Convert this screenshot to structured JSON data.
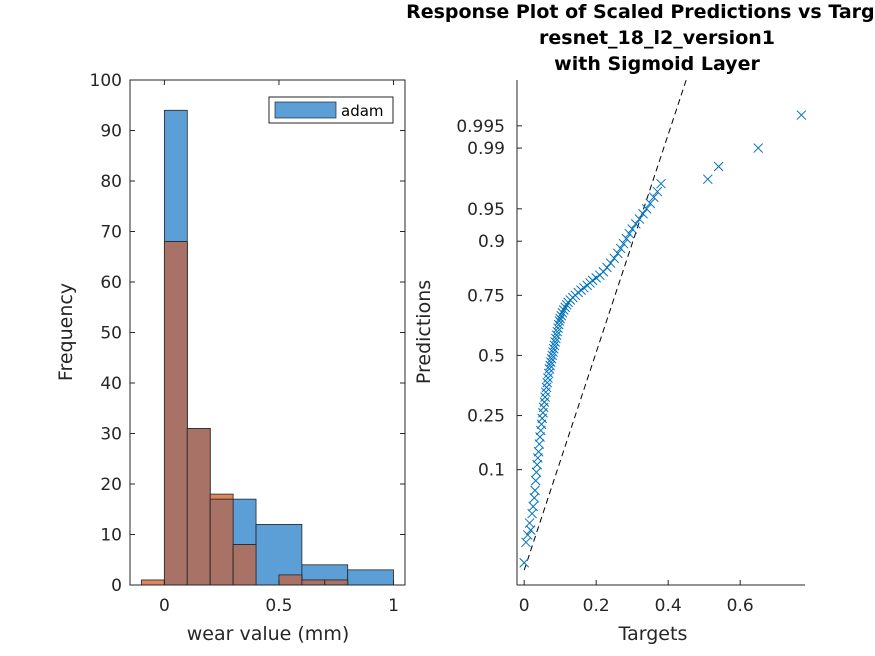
{
  "chart_data": [
    {
      "type": "bar",
      "subtype": "histogram-overlay",
      "xlabel": "wear value (mm)",
      "ylabel": "Frequency",
      "xlim": [
        -0.15,
        1.05
      ],
      "ylim": [
        0,
        100
      ],
      "xticks": [
        0,
        0.5,
        1
      ],
      "xtick_labels": [
        "0",
        "0.5",
        "1"
      ],
      "yticks": [
        0,
        10,
        20,
        30,
        40,
        50,
        60,
        70,
        80,
        90,
        100
      ],
      "ytick_labels": [
        "0",
        "10",
        "20",
        "30",
        "40",
        "50",
        "60",
        "70",
        "80",
        "90",
        "100"
      ],
      "legend": {
        "entries": [
          "adam"
        ],
        "placement": "top-right"
      },
      "grid": false,
      "series": [
        {
          "name": "adam",
          "color": "#5B9FD6",
          "bins": [
            {
              "x0": 0.0,
              "x1": 0.1,
              "value": 94
            },
            {
              "x0": 0.1,
              "x1": 0.2,
              "value": 31
            },
            {
              "x0": 0.2,
              "x1": 0.3,
              "value": 17
            },
            {
              "x0": 0.3,
              "x1": 0.4,
              "value": 17
            },
            {
              "x0": 0.4,
              "x1": 0.6,
              "value": 12
            },
            {
              "x0": 0.6,
              "x1": 0.8,
              "value": 4
            },
            {
              "x0": 0.8,
              "x1": 1.0,
              "value": 3
            }
          ]
        },
        {
          "color": "#D9784A",
          "bins": [
            {
              "x0": -0.1,
              "x1": 0.0,
              "value": 1
            },
            {
              "x0": 0.0,
              "x1": 0.1,
              "value": 68
            },
            {
              "x0": 0.1,
              "x1": 0.2,
              "value": 31
            },
            {
              "x0": 0.2,
              "x1": 0.3,
              "value": 18
            },
            {
              "x0": 0.3,
              "x1": 0.4,
              "value": 8
            },
            {
              "x0": 0.5,
              "x1": 0.6,
              "value": 2
            },
            {
              "x0": 0.6,
              "x1": 0.7,
              "value": 1
            },
            {
              "x0": 0.7,
              "x1": 0.8,
              "value": 1
            }
          ]
        }
      ],
      "overlap_color": "#A87366"
    },
    {
      "type": "scatter",
      "title_lines": [
        "Response Plot of Scaled Predictions vs Targets",
        "resnet_18_l2_version1",
        "with Sigmoid Layer"
      ],
      "xlabel": "Targets",
      "ylabel": "Predictions",
      "xlim": [
        -0.02,
        0.78
      ],
      "yscale": "probability",
      "xticks": [
        0,
        0.2,
        0.4,
        0.6
      ],
      "xtick_labels": [
        "0",
        "0.2",
        "0.4",
        "0.6"
      ],
      "yticks": [
        0.1,
        0.25,
        0.5,
        0.75,
        0.9,
        0.95,
        0.99,
        0.995
      ],
      "ytick_labels": [
        "0.1",
        "0.25",
        "0.5",
        "0.75",
        "0.9",
        "0.95",
        "0.99",
        "0.995"
      ],
      "marker": "x",
      "marker_color": "#0072BD",
      "reference_line": {
        "style": "dashed",
        "color": "#000000"
      },
      "points": [
        [
          0.0,
          0.01
        ],
        [
          0.005,
          0.018
        ],
        [
          0.01,
          0.022
        ],
        [
          0.015,
          0.03
        ],
        [
          0.018,
          0.025
        ],
        [
          0.022,
          0.038
        ],
        [
          0.025,
          0.045
        ],
        [
          0.028,
          0.055
        ],
        [
          0.03,
          0.065
        ],
        [
          0.032,
          0.08
        ],
        [
          0.034,
          0.095
        ],
        [
          0.036,
          0.11
        ],
        [
          0.038,
          0.125
        ],
        [
          0.04,
          0.14
        ],
        [
          0.042,
          0.16
        ],
        [
          0.044,
          0.18
        ],
        [
          0.046,
          0.2
        ],
        [
          0.048,
          0.22
        ],
        [
          0.05,
          0.24
        ],
        [
          0.052,
          0.26
        ],
        [
          0.054,
          0.28
        ],
        [
          0.056,
          0.3
        ],
        [
          0.058,
          0.32
        ],
        [
          0.06,
          0.34
        ],
        [
          0.062,
          0.36
        ],
        [
          0.064,
          0.38
        ],
        [
          0.066,
          0.4
        ],
        [
          0.068,
          0.42
        ],
        [
          0.07,
          0.44
        ],
        [
          0.072,
          0.455
        ],
        [
          0.074,
          0.47
        ],
        [
          0.076,
          0.485
        ],
        [
          0.078,
          0.5
        ],
        [
          0.08,
          0.515
        ],
        [
          0.082,
          0.53
        ],
        [
          0.084,
          0.545
        ],
        [
          0.086,
          0.56
        ],
        [
          0.088,
          0.575
        ],
        [
          0.09,
          0.59
        ],
        [
          0.092,
          0.605
        ],
        [
          0.094,
          0.62
        ],
        [
          0.096,
          0.635
        ],
        [
          0.098,
          0.65
        ],
        [
          0.1,
          0.66
        ],
        [
          0.103,
          0.672
        ],
        [
          0.106,
          0.684
        ],
        [
          0.11,
          0.695
        ],
        [
          0.114,
          0.705
        ],
        [
          0.118,
          0.715
        ],
        [
          0.122,
          0.724
        ],
        [
          0.128,
          0.733
        ],
        [
          0.135,
          0.742
        ],
        [
          0.142,
          0.75
        ],
        [
          0.15,
          0.76
        ],
        [
          0.158,
          0.768
        ],
        [
          0.166,
          0.776
        ],
        [
          0.175,
          0.784
        ],
        [
          0.183,
          0.792
        ],
        [
          0.19,
          0.8
        ],
        [
          0.2,
          0.808
        ],
        [
          0.21,
          0.816
        ],
        [
          0.22,
          0.826
        ],
        [
          0.23,
          0.838
        ],
        [
          0.24,
          0.85
        ],
        [
          0.25,
          0.862
        ],
        [
          0.26,
          0.874
        ],
        [
          0.268,
          0.885
        ],
        [
          0.276,
          0.895
        ],
        [
          0.284,
          0.905
        ],
        [
          0.292,
          0.914
        ],
        [
          0.3,
          0.922
        ],
        [
          0.31,
          0.93
        ],
        [
          0.32,
          0.937
        ],
        [
          0.33,
          0.944
        ],
        [
          0.34,
          0.95
        ],
        [
          0.35,
          0.956
        ],
        [
          0.36,
          0.962
        ],
        [
          0.37,
          0.967
        ],
        [
          0.38,
          0.973
        ],
        [
          0.51,
          0.976
        ],
        [
          0.54,
          0.983
        ],
        [
          0.65,
          0.99
        ],
        [
          0.77,
          0.9965
        ]
      ]
    }
  ]
}
